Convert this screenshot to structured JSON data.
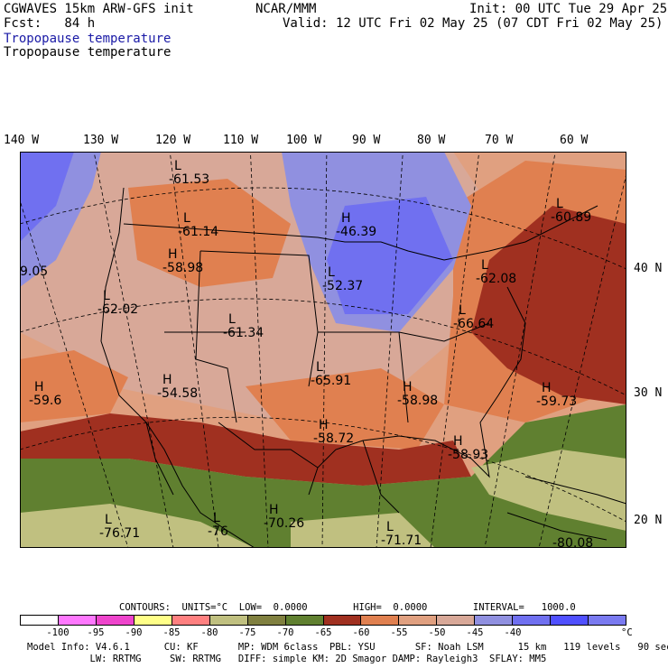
{
  "header": {
    "model_title": "CGWAVES 15km ARW-GFS init",
    "org": "NCAR/MMM",
    "init": "Init: 00 UTC Tue 29 Apr 25",
    "fcst": "Fcst:   84 h",
    "valid": "Valid: 12 UTC Fri 02 May 25 (07 CDT Fri 02 May 25)",
    "field_title_1": "Tropopause temperature",
    "field_title_2": "Tropopause temperature"
  },
  "lon_labels": [
    {
      "text": "140 W",
      "lon": -140
    },
    {
      "text": "130 W",
      "lon": -130
    },
    {
      "text": "120 W",
      "lon": -120
    },
    {
      "text": "110 W",
      "lon": -110
    },
    {
      "text": "100 W",
      "lon": -100
    },
    {
      "text": "90 W",
      "lon": -90
    },
    {
      "text": "80 W",
      "lon": -80
    },
    {
      "text": "70 W",
      "lon": -70
    },
    {
      "text": "60 W",
      "lon": -60
    }
  ],
  "lat_labels": [
    {
      "text": "40 N",
      "lat": 40
    },
    {
      "text": "30 N",
      "lat": 30
    },
    {
      "text": "20 N",
      "lat": 20
    }
  ],
  "map_markers": [
    {
      "type": "L",
      "value": "-61.53"
    },
    {
      "type": "L",
      "value": "-61.14"
    },
    {
      "type": "H",
      "value": "-58.98"
    },
    {
      "type": "H",
      "value": "-46.39"
    },
    {
      "type": "L",
      "value": "-52.37"
    },
    {
      "type": "L",
      "value": "-62.02"
    },
    {
      "type": "L",
      "value": "-61.34"
    },
    {
      "type": "H",
      "value": "-54.58"
    },
    {
      "type": "L",
      "value": "-65.91"
    },
    {
      "type": "H",
      "value": "-59.6"
    },
    {
      "type": "H",
      "value": "-58.98"
    },
    {
      "type": "H",
      "value": "-59.73"
    },
    {
      "type": "H",
      "value": "-58.72"
    },
    {
      "type": "H",
      "value": "-58.93"
    },
    {
      "type": "L",
      "value": "-76.71"
    },
    {
      "type": "L",
      "value": "-76"
    },
    {
      "type": "H",
      "value": "-70.26"
    },
    {
      "type": "L",
      "value": "-71.71"
    },
    {
      "type": "L",
      "value": "-60.89"
    },
    {
      "type": "L",
      "value": "-62.08"
    },
    {
      "type": "L",
      "value": "-66.64"
    },
    {
      "type": "",
      "value": "-80.08"
    },
    {
      "type": "",
      "value": "9.05"
    }
  ],
  "contours_line": "CONTOURS:  UNITS=°C  LOW=  0.0000        HIGH=  0.0000        INTERVAL=   1000.0",
  "legend": {
    "colors": [
      "#ffffff",
      "#ff78ff",
      "#ee44cc",
      "#ffff88",
      "#ff8080",
      "#c0c080",
      "#808040",
      "#608030",
      "#a03020",
      "#e08050",
      "#e0a080",
      "#d8a898",
      "#9090e0",
      "#7070f0",
      "#5050ff",
      "#7a7af0"
    ],
    "ticks": [
      "-100",
      "-95",
      "-90",
      "-85",
      "-80",
      "-75",
      "-70",
      "-65",
      "-60",
      "-55",
      "-50",
      "-45",
      "-40"
    ],
    "unit": "°C"
  },
  "footer": {
    "line1": "Model Info: V4.6.1      CU: KF       MP: WDM 6class  PBL: YSU       SF: Noah LSM      15 km   119 levels   90 sec",
    "line2": "           LW: RRTMG     SW: RRTMG   DIFF: simple KM: 2D Smagor DAMP: Rayleigh3  SFLAY: MM5"
  }
}
